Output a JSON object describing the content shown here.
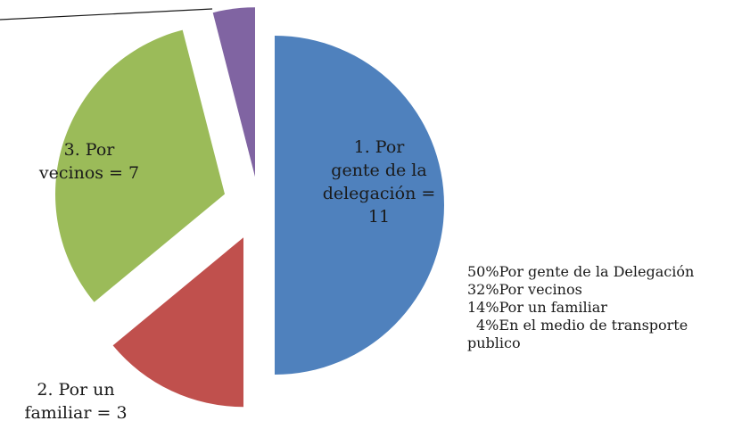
{
  "chart_data": {
    "type": "pie",
    "title": "",
    "slices": [
      {
        "label": "Por gente de la Delegación",
        "value": 11,
        "percent": 50,
        "color": "#4f81bd"
      },
      {
        "label": "Por un familiar",
        "value": 3,
        "percent": 14,
        "color": "#c0504d"
      },
      {
        "label": "Por vecinos",
        "value": 7,
        "percent": 32,
        "color": "#9bbb59"
      },
      {
        "label": "En el medio de transporte publico",
        "value": 1,
        "percent": 4,
        "color": "#8064a2"
      }
    ],
    "exploded": true,
    "data_labels": {
      "delegacion": [
        "1.        Por",
        "gente de la",
        "delegación =",
        "11"
      ],
      "familiar": [
        "2.        Por un",
        "familiar = 3"
      ],
      "vecinos": [
        "3.        Por",
        "vecinos = 7"
      ]
    },
    "legend": {
      "placement": "right",
      "items": [
        "50%Por gente de la Delegación",
        "32%Por vecinos",
        "14%Por un familiar",
        "4%En el medio de transporte",
        "publico"
      ]
    }
  }
}
